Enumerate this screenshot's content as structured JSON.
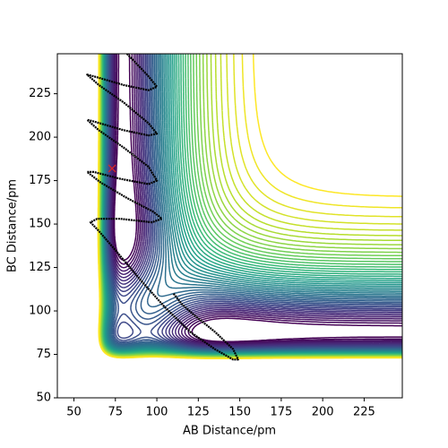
{
  "chart_data": {
    "type": "contour",
    "xlabel": "AB Distance/pm",
    "ylabel": "BC Distance/pm",
    "xlim": [
      40,
      248
    ],
    "ylim": [
      50,
      248
    ],
    "xticks": [
      50,
      75,
      100,
      125,
      150,
      175,
      200,
      225
    ],
    "yticks": [
      50,
      75,
      100,
      125,
      150,
      175,
      200,
      225
    ],
    "colormap": "viridis",
    "levels": [
      0.02,
      0.04,
      0.06,
      0.08,
      0.1,
      0.12,
      0.14,
      0.16,
      0.18,
      0.2,
      0.22,
      0.24,
      0.26,
      0.28,
      0.3,
      0.32,
      0.34,
      0.36,
      0.38,
      0.4,
      0.42,
      0.44,
      0.46,
      0.48,
      0.5,
      0.52,
      0.54,
      0.56,
      0.58,
      0.6,
      0.62,
      0.64,
      0.66,
      0.68,
      0.7,
      0.72,
      0.74,
      0.76,
      0.78,
      0.8,
      0.82,
      0.84,
      0.86,
      0.88,
      0.9,
      0.92,
      0.94
    ],
    "trajectory": {
      "color": "#000000",
      "x": [
        82,
        95,
        100,
        95,
        80,
        62,
        58,
        65,
        80,
        95,
        100,
        95,
        80,
        62,
        58,
        65,
        80,
        95,
        100,
        95,
        78,
        62,
        58,
        66,
        82,
        98,
        103,
        97,
        78,
        64,
        60,
        65,
        75,
        90,
        105,
        120,
        135,
        146,
        149,
        146,
        135,
        122,
        115,
        110
      ],
      "y": [
        248,
        235,
        229,
        227,
        230,
        235,
        236,
        230,
        220,
        208,
        202,
        201,
        204,
        209,
        210,
        204,
        194,
        183,
        175,
        173,
        176,
        180,
        180,
        174,
        165,
        157,
        153,
        151,
        153,
        153,
        151,
        146,
        135,
        118,
        102,
        88,
        78,
        72,
        72,
        78,
        88,
        98,
        104,
        110
      ]
    },
    "marker": {
      "x": 73,
      "y": 182,
      "color": "#d62728"
    }
  }
}
